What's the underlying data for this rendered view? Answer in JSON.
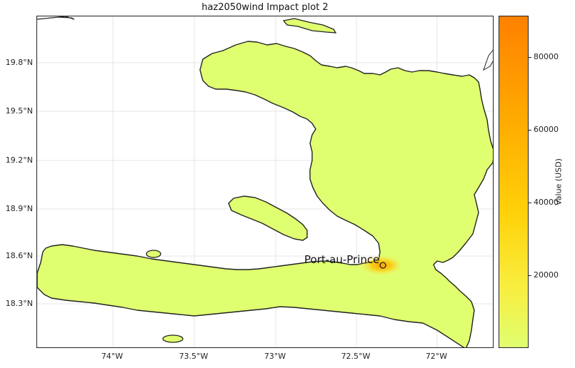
{
  "map": {
    "title": "haz2050wind Impact plot 2",
    "city_label": "Port-au-Prince",
    "lat_ticks": [
      "19.8°N",
      "19.5°N",
      "19.2°N",
      "18.9°N",
      "18.6°N",
      "18.3°N"
    ],
    "lon_ticks": [
      "74°W",
      "73.5°W",
      "73°W",
      "72.5°W",
      "72°W"
    ],
    "land_color": "#e0ff70",
    "coast_color": "#222222"
  },
  "colorbar": {
    "label": "Value (USD)",
    "ticks": [
      "80000",
      "60000",
      "40000",
      "20000"
    ],
    "min_color": "#e0ff70",
    "max_color": "#ff8000"
  }
}
